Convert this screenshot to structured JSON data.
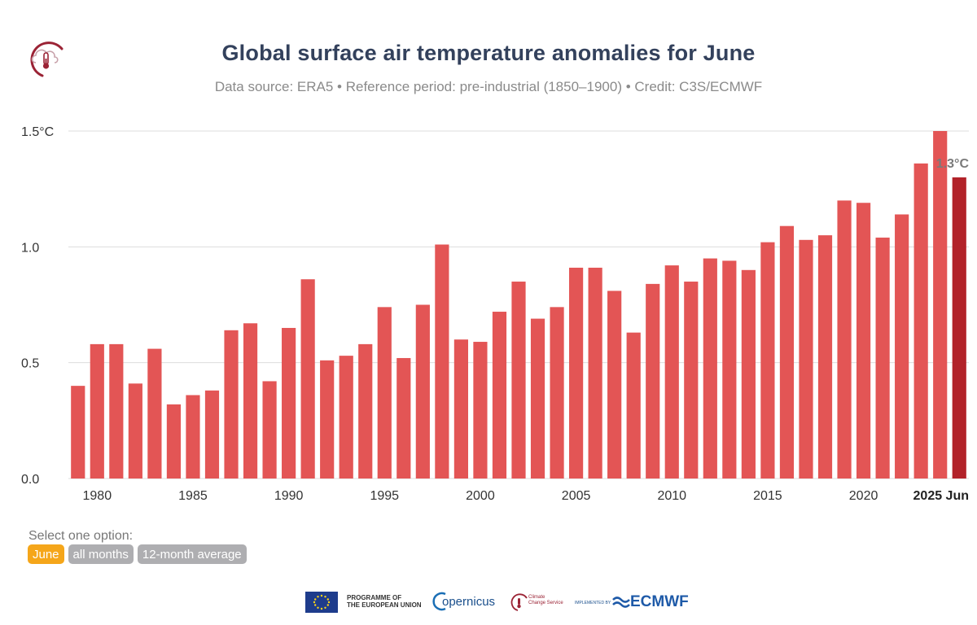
{
  "chart_data": {
    "type": "bar",
    "title": "Global surface air temperature anomalies for June",
    "subtitle": "Data source: ERA5 • Reference period: pre-industrial (1850–1900) • Credit: C3S/ECMWF",
    "x": [
      1979,
      1980,
      1981,
      1982,
      1983,
      1984,
      1985,
      1986,
      1987,
      1988,
      1989,
      1990,
      1991,
      1992,
      1993,
      1994,
      1995,
      1996,
      1997,
      1998,
      1999,
      2000,
      2001,
      2002,
      2003,
      2004,
      2005,
      2006,
      2007,
      2008,
      2009,
      2010,
      2011,
      2012,
      2013,
      2014,
      2015,
      2016,
      2017,
      2018,
      2019,
      2020,
      2021,
      2022,
      2023,
      2024,
      2025
    ],
    "values": [
      0.4,
      0.58,
      0.58,
      0.41,
      0.56,
      0.32,
      0.36,
      0.38,
      0.64,
      0.67,
      0.42,
      0.65,
      0.86,
      0.51,
      0.53,
      0.58,
      0.74,
      0.52,
      0.75,
      1.01,
      0.6,
      0.59,
      0.72,
      0.85,
      0.69,
      0.74,
      0.91,
      0.91,
      0.81,
      0.63,
      0.84,
      0.92,
      0.85,
      0.95,
      0.94,
      0.9,
      1.02,
      1.09,
      1.03,
      1.05,
      1.2,
      1.19,
      1.04,
      1.14,
      1.36,
      1.5,
      1.3
    ],
    "highlight_index": 46,
    "highlight_label": "1.3°C",
    "x_ticks": [
      {
        "year": 1980,
        "label": "1980"
      },
      {
        "year": 1985,
        "label": "1985"
      },
      {
        "year": 1990,
        "label": "1990"
      },
      {
        "year": 1995,
        "label": "1995"
      },
      {
        "year": 2000,
        "label": "2000"
      },
      {
        "year": 2005,
        "label": "2005"
      },
      {
        "year": 2010,
        "label": "2010"
      },
      {
        "year": 2015,
        "label": "2015"
      },
      {
        "year": 2020,
        "label": "2020"
      },
      {
        "year": 2025,
        "label": "2025 Jun",
        "bold": true
      }
    ],
    "y_ticks": [
      {
        "value": 0.0,
        "label": "0.0"
      },
      {
        "value": 0.5,
        "label": "0.5"
      },
      {
        "value": 1.0,
        "label": "1.0"
      },
      {
        "value": 1.5,
        "label": "1.5°C"
      }
    ],
    "ylim": [
      0,
      1.5
    ],
    "grid": true,
    "colors": {
      "bar": "#e35555",
      "highlight": "#b22229",
      "grid": "#dddddd"
    }
  },
  "controls": {
    "label": "Select one option:",
    "options": [
      "June",
      "all months",
      "12-month average"
    ],
    "selected": "June",
    "colors": {
      "active": "#f5a61a",
      "inactive": "#aeaeb1"
    }
  },
  "footer": {
    "eu_text_1": "PROGRAMME OF",
    "eu_text_2": "THE EUROPEAN UNION",
    "copernicus": "opernicus",
    "ccs_text_1": "Climate",
    "ccs_text_2": "Change Service",
    "implemented_by": "IMPLEMENTED BY",
    "ecmwf": "ECMWF"
  }
}
